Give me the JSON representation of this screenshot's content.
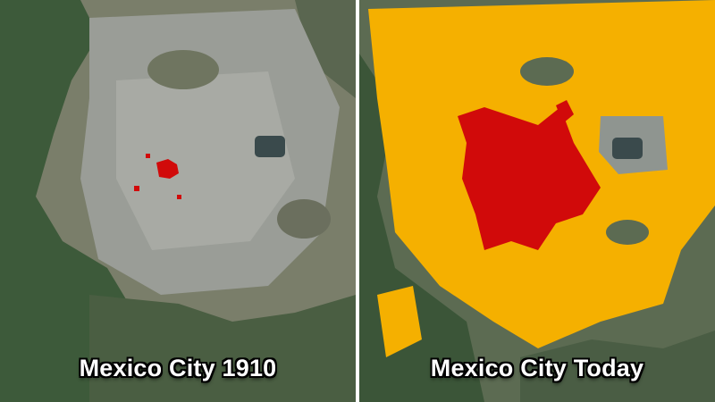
{
  "panels": [
    {
      "caption": "Mexico City 1910"
    },
    {
      "caption": "Mexico City Today"
    }
  ],
  "colors": {
    "forest": "#3d5a3a",
    "urban_gray": "#9a9d97",
    "lake_dark": "#3a4a4c",
    "urban_extent_1910": "#d10a0a",
    "urban_extent_today": "#f5b000"
  },
  "legend": "none"
}
